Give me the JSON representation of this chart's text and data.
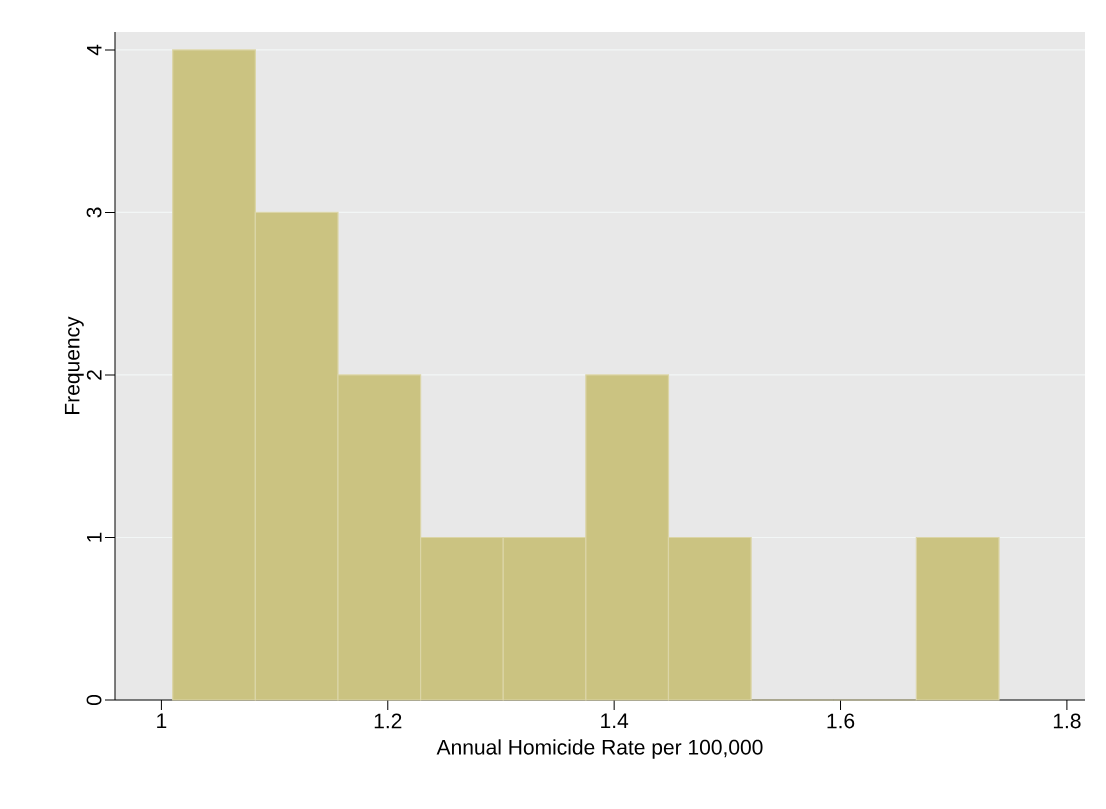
{
  "chart_data": {
    "type": "histogram",
    "xlabel": "Annual Homicide Rate per 100,000",
    "ylabel": "Frequency",
    "bins": [
      1.01,
      1.083,
      1.156,
      1.229,
      1.302,
      1.375,
      1.448,
      1.521,
      1.594,
      1.667,
      1.74
    ],
    "values": [
      4,
      3,
      2,
      1,
      1,
      2,
      1,
      0,
      0,
      1
    ],
    "color": "#cbc381",
    "xlim": [
      0.959,
      1.816
    ],
    "ylim": [
      0,
      4.11
    ],
    "xticks": [
      1,
      1.2,
      1.4,
      1.6,
      1.8
    ],
    "yticks": [
      0,
      1,
      2,
      3,
      4
    ],
    "grid": "y"
  }
}
